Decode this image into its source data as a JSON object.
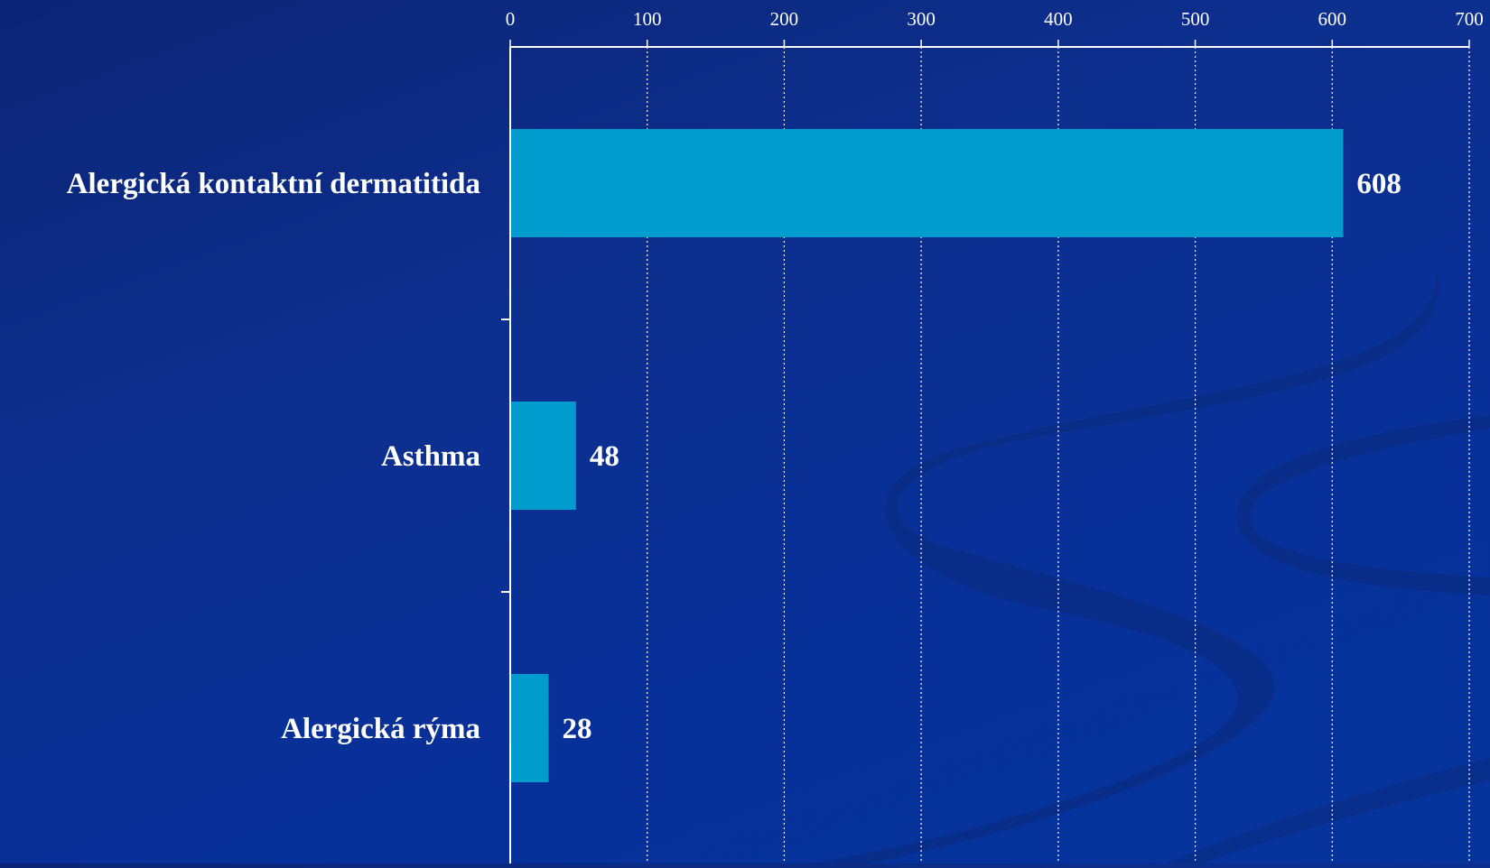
{
  "colors": {
    "background": "#0a2a8c",
    "bar": "#009ccd",
    "axis": "#ffffff",
    "grid": "#ffffff",
    "swoosh": "#0a2a7a"
  },
  "chart_data": {
    "type": "bar",
    "orientation": "horizontal",
    "categories": [
      "Alergická kontaktní dermatitida",
      "Asthma",
      "Alergická rýma"
    ],
    "values": [
      608,
      48,
      28
    ],
    "value_labels": [
      "608",
      "48",
      "28"
    ],
    "xlim": [
      0,
      700
    ],
    "ticks": [
      0,
      100,
      200,
      300,
      400,
      500,
      600,
      700
    ],
    "tick_labels": [
      "0",
      "100",
      "200",
      "300",
      "400",
      "500",
      "600",
      "700"
    ],
    "x_axis_position": "top",
    "grid": true,
    "grid_style": "dotted",
    "legend": "none",
    "title": "",
    "xlabel": "",
    "ylabel": ""
  }
}
